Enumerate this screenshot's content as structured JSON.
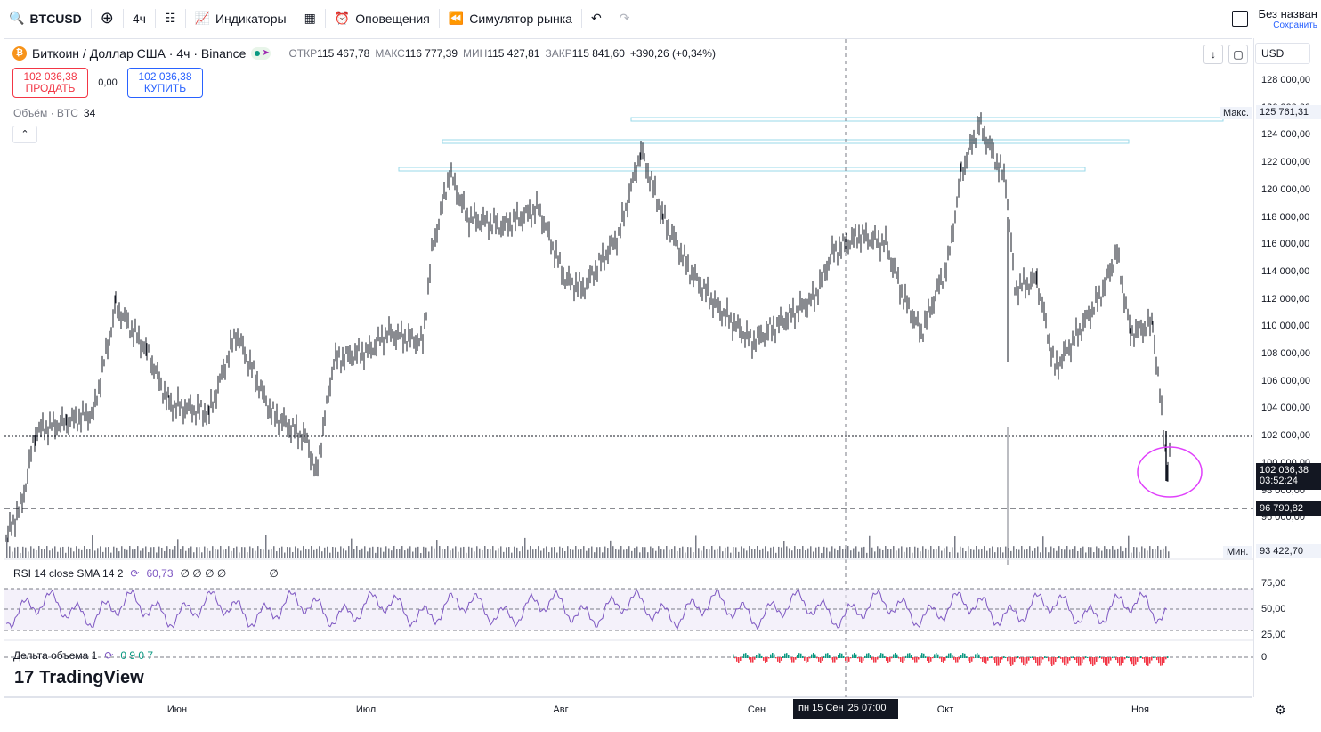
{
  "topbar": {
    "symbol": "BTCUSD",
    "interval": "4ч",
    "indicators": "Индикаторы",
    "alerts": "Оповещения",
    "replay": "Симулятор рынка",
    "layout_name": "Без назван",
    "saved": "Сохранить"
  },
  "legend": {
    "title": "Биткоин / Доллар США · 4ч · Binance",
    "open_k": "ОТКР",
    "open_v": "115 467,78",
    "high_k": "МАКС",
    "high_v": "116 777,39",
    "low_k": "МИН",
    "low_v": "115 427,81",
    "close_k": "ЗАКР",
    "close_v": "115 841,60",
    "change": "+390,26 (+0,34%)"
  },
  "trade": {
    "sell_price": "102 036,38",
    "sell_label": "ПРОДАТЬ",
    "spread": "0,00",
    "buy_price": "102 036,38",
    "buy_label": "КУПИТЬ"
  },
  "volume": {
    "label": "Объём · BTC",
    "value": "34"
  },
  "rsi": {
    "label": "RSI 14 close SMA 14 2",
    "value": "60,73",
    "extra": "∅ ∅ ∅ ∅",
    "extra2": "∅"
  },
  "delta": {
    "label": "Дельта объема 1",
    "value": "0 9 0 7"
  },
  "logo": "TradingView",
  "currency": "USD",
  "price_scale": [
    "128 000,00",
    "126 000,00",
    "124 000,00",
    "122 000,00",
    "120 000,00",
    "118 000,00",
    "116 000,00",
    "114 000,00",
    "112 000,00",
    "110 000,00",
    "108 000,00",
    "106 000,00",
    "104 000,00",
    "102 000,00",
    "100 000,00",
    "98 000,00",
    "96 000,00"
  ],
  "price_tags": {
    "max_label": "Макс.",
    "max_value": "125 761,31",
    "last_value": "102 036,38",
    "countdown": "03:52:24",
    "dashed_value": "96 790,82",
    "min_label": "Мин.",
    "min_value": "93 422,70"
  },
  "rsi_scale": [
    "75,00",
    "50,00",
    "25,00"
  ],
  "delta_scale": "0",
  "time_scale": {
    "labels": [
      "Июн",
      "Июл",
      "Авг",
      "Сен",
      "Окт",
      "Ноя"
    ],
    "cursor": "пн 15 Сен '25   07:00"
  },
  "colors": {
    "candle": "#131722",
    "rsi": "#7e57c2",
    "level": "#9ad9e8",
    "circle": "#e040fb",
    "sell": "#f23645",
    "buy": "#2962ff"
  }
}
